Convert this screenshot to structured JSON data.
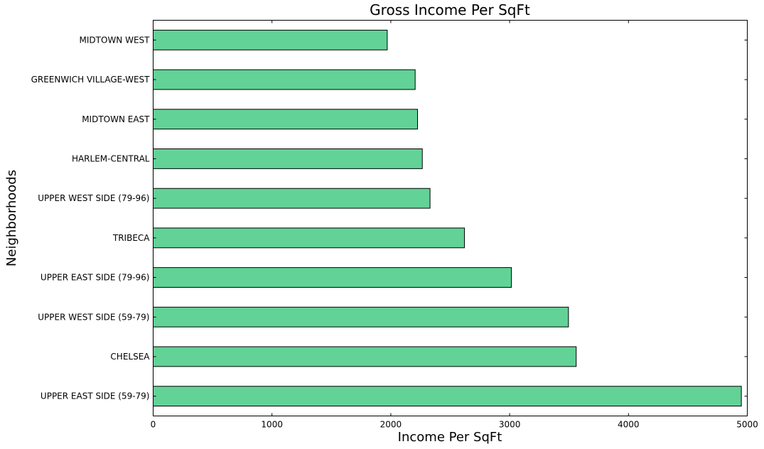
{
  "chart_data": {
    "type": "bar",
    "orientation": "horizontal",
    "title": "Gross Income Per SqFt",
    "xlabel": "Income Per SqFt",
    "ylabel": "Neighborhoods",
    "xlim": [
      0,
      5000
    ],
    "xticks": [
      0,
      1000,
      2000,
      3000,
      4000,
      5000
    ],
    "categories": [
      "UPPER EAST SIDE (59-79)",
      "CHELSEA",
      "UPPER WEST SIDE (59-79)",
      "UPPER EAST SIDE (79-96)",
      "TRIBECA",
      "UPPER WEST SIDE (79-96)",
      "HARLEM-CENTRAL",
      "MIDTOWN EAST",
      "GREENWICH VILLAGE-WEST",
      "MIDTOWN WEST"
    ],
    "values": [
      4950,
      3560,
      3495,
      3015,
      2620,
      2330,
      2265,
      2225,
      2205,
      1970
    ],
    "bar_color": "#62d296",
    "edge_color": "#000000",
    "grid": false,
    "legend": "none"
  }
}
